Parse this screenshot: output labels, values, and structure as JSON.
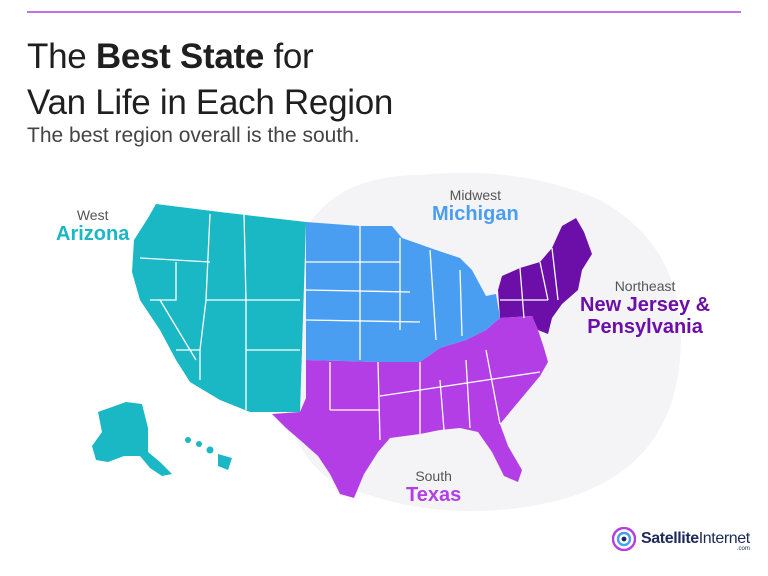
{
  "title": {
    "line1_pre": "The ",
    "line1_bold": "Best State",
    "line1_post": " for",
    "line2": "Van Life in Each Region"
  },
  "subtitle": "The best region overall is the south.",
  "regions": {
    "west": {
      "region": "West",
      "state": "Arizona",
      "color": "#1ab7c4"
    },
    "midwest": {
      "region": "Midwest",
      "state": "Michigan",
      "color": "#4a9ef2"
    },
    "northeast": {
      "region": "Northeast",
      "state_line1": "New Jersey &",
      "state_line2": "Pensylvania",
      "color": "#6b0fa8"
    },
    "south": {
      "region": "South",
      "state": "Texas",
      "color": "#b33ee6"
    }
  },
  "logo": {
    "brand_bold": "Satellite",
    "brand_light": "Internet",
    "suffix": ".com",
    "icon": "satellite-signal-icon"
  }
}
